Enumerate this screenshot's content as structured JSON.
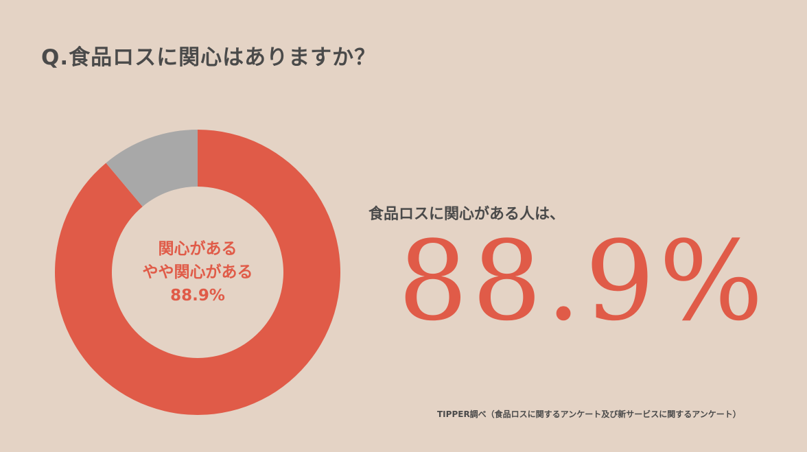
{
  "title": "Q.食品ロスに関心はありますか？",
  "chart_data": {
    "type": "pie",
    "categories": [
      "関心がある やや関心がある",
      ""
    ],
    "values": [
      88.9,
      11.1
    ],
    "center_label": {
      "line1": "関心がある",
      "line2": "やや関心がある",
      "line3": "88.9%"
    }
  },
  "colors": {
    "interested": "#e05b48",
    "other": "#a8a8a8",
    "background": "#e4d3c5"
  },
  "summary": {
    "lead": "食品ロスに関心がある人は、",
    "value": "88.9%"
  },
  "source": "TIPPER調べ（食品ロスに関するアンケート及び新サービスに関するアンケート）"
}
